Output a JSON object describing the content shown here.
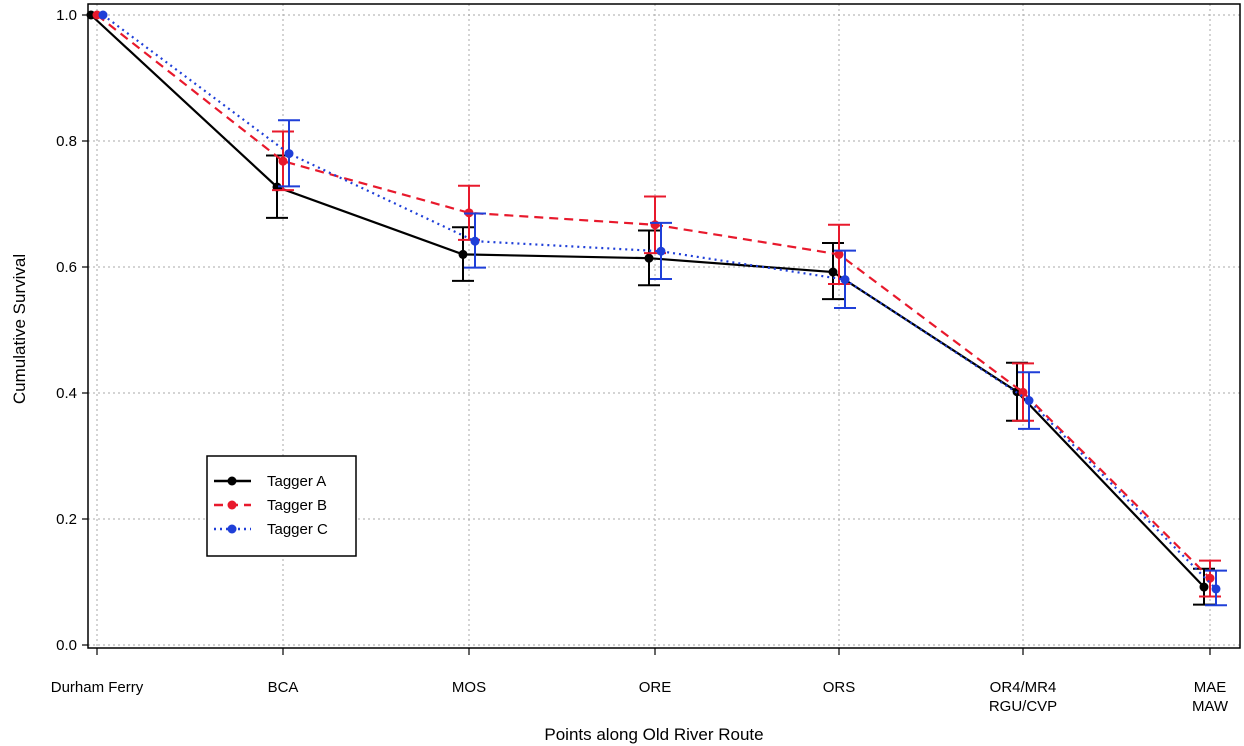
{
  "chart_data": {
    "type": "line",
    "title": "",
    "xlabel": "Points along Old River Route",
    "ylabel": "Cumulative Survival",
    "ylim": [
      0,
      1.0
    ],
    "yticks": [
      "0.0",
      "0.2",
      "0.4",
      "0.6",
      "0.8",
      "1.0"
    ],
    "categories": [
      [
        "Durham Ferry"
      ],
      [
        "BCA"
      ],
      [
        "MOS"
      ],
      [
        "ORE"
      ],
      [
        "ORS"
      ],
      [
        "OR4/MR4",
        "RGU/CVP"
      ],
      [
        "MAE",
        "MAW"
      ]
    ],
    "grid": true,
    "legend_position": "left",
    "series": [
      {
        "name": "Tagger A",
        "color": "#000000",
        "dash": "solid",
        "values": [
          1.0,
          0.727,
          0.62,
          0.614,
          0.592,
          0.402,
          0.092
        ],
        "lower": [
          1.0,
          0.678,
          0.578,
          0.571,
          0.549,
          0.356,
          0.064
        ],
        "upper": [
          1.0,
          0.777,
          0.663,
          0.658,
          0.638,
          0.448,
          0.121
        ]
      },
      {
        "name": "Tagger B",
        "color": "#e8192c",
        "dash": "dashed",
        "values": [
          1.0,
          0.768,
          0.686,
          0.667,
          0.62,
          0.401,
          0.106
        ],
        "lower": [
          1.0,
          0.722,
          0.643,
          0.622,
          0.573,
          0.356,
          0.077
        ],
        "upper": [
          1.0,
          0.815,
          0.729,
          0.712,
          0.667,
          0.447,
          0.134
        ]
      },
      {
        "name": "Tagger C",
        "color": "#1f3fd8",
        "dash": "dotted",
        "values": [
          1.0,
          0.78,
          0.641,
          0.625,
          0.58,
          0.388,
          0.089
        ],
        "lower": [
          1.0,
          0.728,
          0.599,
          0.581,
          0.535,
          0.343,
          0.063
        ],
        "upper": [
          1.0,
          0.833,
          0.685,
          0.67,
          0.626,
          0.433,
          0.118
        ]
      }
    ]
  }
}
